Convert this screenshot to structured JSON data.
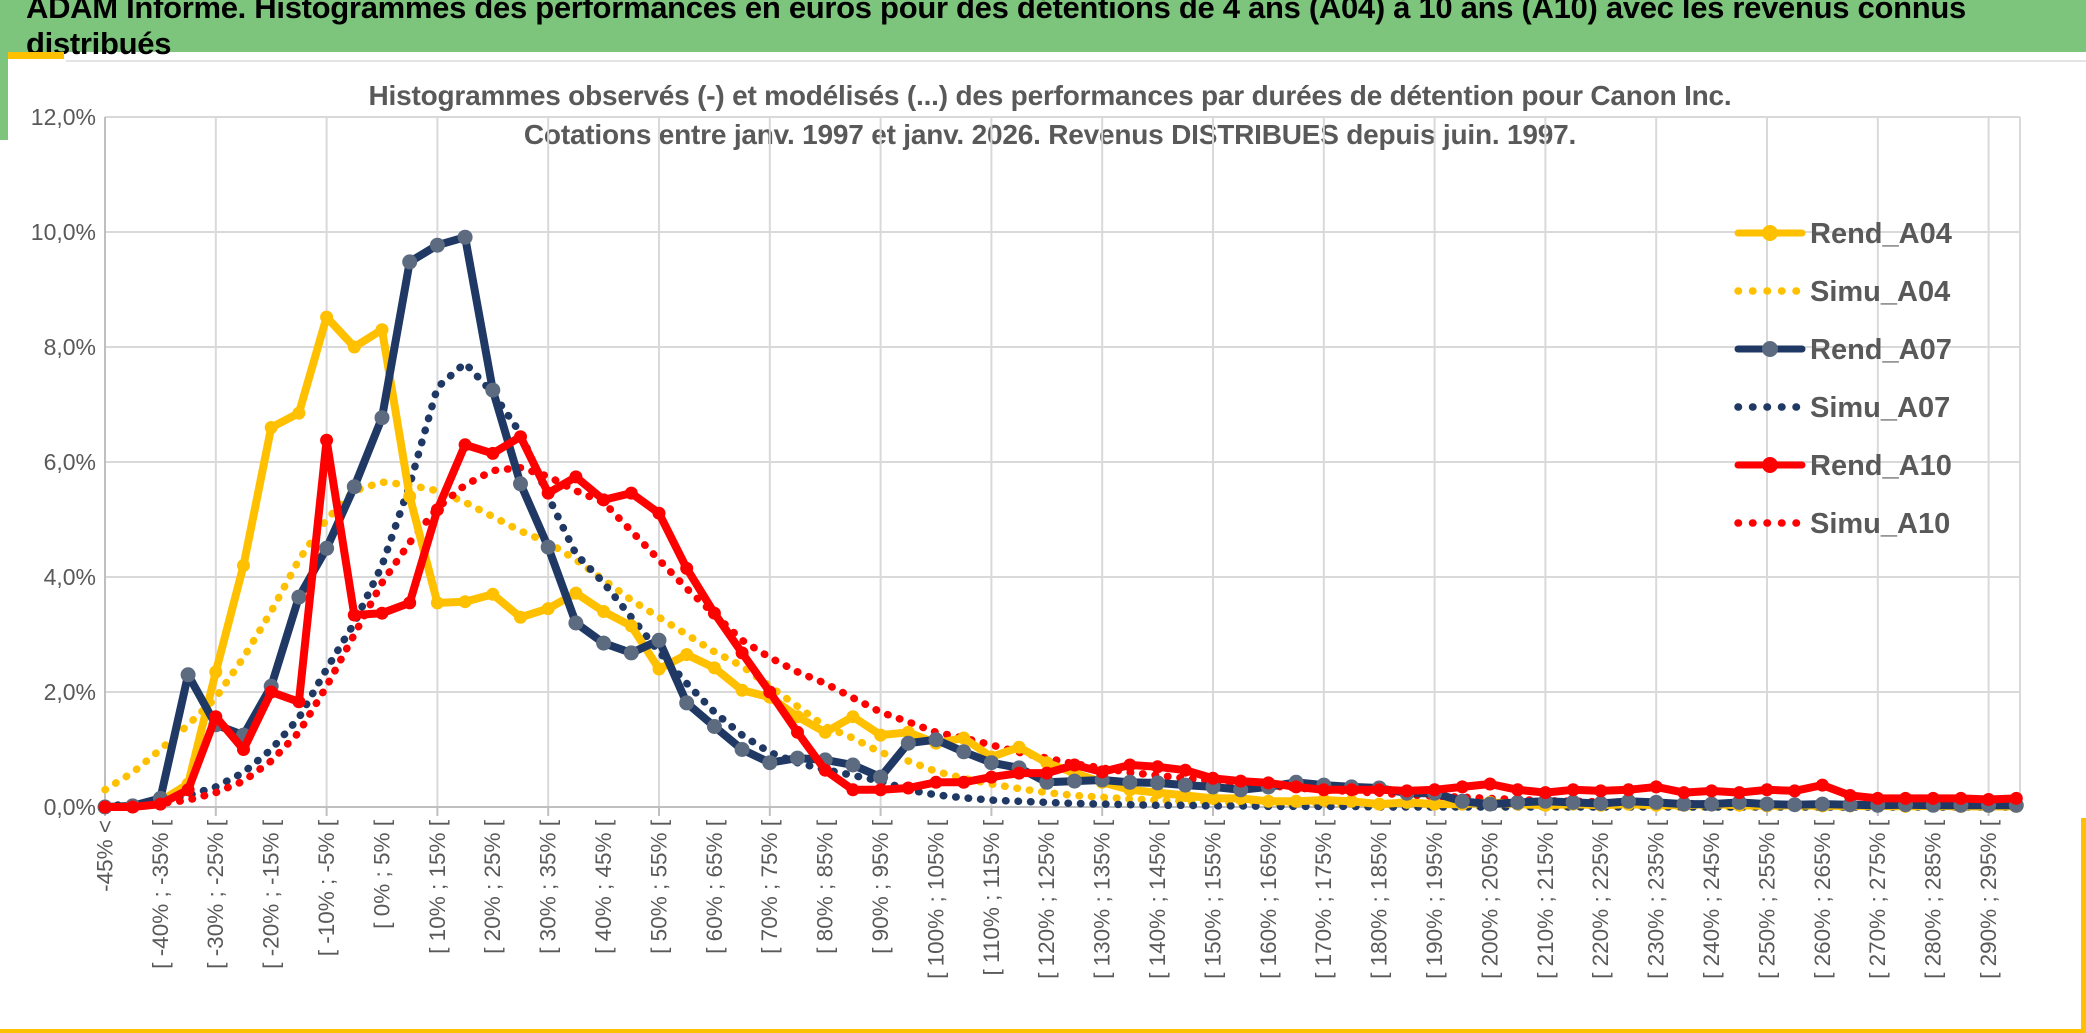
{
  "header": {
    "title": "ADAM Informe. Histogrammes des performances en euros pour des détentions de 4 ans (A04) à 10 ans (A10) avec les revenus connus distribués",
    "bg_color": "#7DC57D",
    "accent_color": "#FFC000"
  },
  "chart": {
    "title_line1": "Histogrammes observés (-) et modélisés (...) des performances par durées de détention pour Canon Inc.",
    "title_line2": "Cotations entre janv. 1997 et janv. 2026. Revenus DISTRIBUES depuis juin. 1997.",
    "title_color": "#595959",
    "grid_color": "#D9D9D9",
    "axis_color": "#BFBFBF",
    "tick_text_color": "#595959"
  },
  "chart_data": {
    "type": "line",
    "title": "Histogrammes observés (-) et modélisés (...) des performances par durées de détention pour Canon Inc.",
    "subtitle": "Cotations entre janv. 1997 et janv. 2026. Revenus DISTRIBUES depuis juin. 1997.",
    "ylim": [
      0,
      12
    ],
    "y_tick_values": [
      0,
      2,
      4,
      6,
      8,
      10,
      12
    ],
    "y_tick_labels": [
      "0,0%",
      "2,0%",
      "4,0%",
      "6,0%",
      "8,0%",
      "10,0%",
      "12,0%"
    ],
    "grid": true,
    "legend_position": "right",
    "x_label_rotation": -90,
    "bin_width_pct": 5,
    "bins_start_pct": -45,
    "labels_every_other_bin": true,
    "x_tick_labels": [
      "-45% <",
      "[ -40% ; -35% [",
      "[ -30% ; -25% [",
      "[ -20% ; -15% [",
      "[ -10% ; -5% [",
      "[ 0% ; 5% [",
      "[ 10% ; 15% [",
      "[ 20% ; 25% [",
      "[ 30% ; 35% [",
      "[ 40% ; 45% [",
      "[ 50% ; 55% [",
      "[ 60% ; 65% [",
      "[ 70% ; 75% [",
      "[ 80% ; 85% [",
      "[ 90% ; 95% [",
      "[ 100% ; 105% [",
      "[ 110% ; 115% [",
      "[ 120% ; 125% [",
      "[ 130% ; 135% [",
      "[ 140% ; 145% [",
      "[ 150% ; 155% [",
      "[ 160% ; 165% [",
      "[ 170% ; 175% [",
      "[ 180% ; 185% [",
      "[ 190% ; 195% [",
      "[ 200% ; 205% [",
      "[ 210% ; 215% [",
      "[ 220% ; 225% [",
      "[ 230% ; 235% [",
      "[ 240% ; 245% [",
      "[ 250% ; 255% [",
      "[ 260% ; 265% [",
      "[ 270% ; 275% [",
      "[ 280% ; 285% [",
      "[ 290% ; 295% ["
    ],
    "series": [
      {
        "name": "Rend_A04",
        "style": "solid",
        "color": "#FFC000",
        "marker_color": "#FFC000",
        "values": [
          0.0,
          0.02,
          0.1,
          0.4,
          2.35,
          4.2,
          6.6,
          6.85,
          8.52,
          8.0,
          8.3,
          5.4,
          3.55,
          3.57,
          3.7,
          3.3,
          3.45,
          3.72,
          3.4,
          3.15,
          2.4,
          2.65,
          2.42,
          2.03,
          1.91,
          1.57,
          1.3,
          1.57,
          1.25,
          1.3,
          1.11,
          1.2,
          0.87,
          1.04,
          0.77,
          0.59,
          0.43,
          0.3,
          0.25,
          0.2,
          0.15,
          0.15,
          0.1,
          0.1,
          0.12,
          0.1,
          0.05,
          0.08,
          0.05,
          0.05,
          0.08,
          0.05,
          0.03,
          0.05,
          0.03,
          0.05,
          0.03,
          0.03,
          0.05,
          0.03,
          0.02,
          0.03,
          0.02,
          0.02,
          0.02,
          0.01,
          0.02,
          0.01,
          0.01,
          0.01
        ]
      },
      {
        "name": "Simu_A04",
        "style": "dotted",
        "color": "#FFC000",
        "values": [
          0.3,
          0.6,
          1.0,
          1.43,
          1.9,
          2.6,
          3.4,
          4.3,
          5.0,
          5.5,
          5.65,
          5.6,
          5.5,
          5.3,
          5.05,
          4.8,
          4.6,
          4.3,
          3.95,
          3.6,
          3.3,
          3.0,
          2.7,
          2.45,
          2.1,
          1.75,
          1.4,
          1.2,
          0.95,
          0.8,
          0.62,
          0.5,
          0.4,
          0.32,
          0.25,
          0.2,
          0.17,
          0.14,
          0.12,
          0.1,
          0.08,
          0.07,
          0.06,
          0.05,
          0.04,
          0.04,
          0.03,
          0.03,
          0.02,
          0.02,
          0.02,
          0.01,
          0.01,
          0.01,
          0.01,
          0.01,
          0.01,
          0.0,
          0.0,
          0.0,
          0.0,
          0.0,
          0.0,
          0.0,
          0.0,
          0.0,
          0.0,
          0.0,
          0.0,
          0.0
        ]
      },
      {
        "name": "Rend_A07",
        "style": "solid",
        "color": "#1F3864",
        "marker_color": "#5D6B80",
        "values": [
          0.0,
          0.02,
          0.15,
          2.3,
          1.43,
          1.25,
          2.1,
          3.65,
          4.5,
          5.57,
          6.77,
          9.48,
          9.77,
          9.91,
          7.25,
          5.62,
          4.52,
          3.2,
          2.85,
          2.68,
          2.9,
          1.81,
          1.4,
          1.0,
          0.77,
          0.85,
          0.82,
          0.73,
          0.52,
          1.11,
          1.17,
          0.96,
          0.77,
          0.68,
          0.43,
          0.45,
          0.47,
          0.43,
          0.42,
          0.38,
          0.35,
          0.3,
          0.35,
          0.43,
          0.38,
          0.35,
          0.33,
          0.24,
          0.24,
          0.1,
          0.05,
          0.08,
          0.1,
          0.08,
          0.06,
          0.1,
          0.08,
          0.05,
          0.05,
          0.08,
          0.05,
          0.04,
          0.05,
          0.04,
          0.03,
          0.04,
          0.03,
          0.03,
          0.03,
          0.03
        ]
      },
      {
        "name": "Simu_A07",
        "style": "dotted",
        "color": "#1F3864",
        "values": [
          0.02,
          0.05,
          0.1,
          0.2,
          0.35,
          0.6,
          1.0,
          1.55,
          2.4,
          3.2,
          4.2,
          5.6,
          7.3,
          7.72,
          7.2,
          6.5,
          5.4,
          4.4,
          3.9,
          3.3,
          2.7,
          2.15,
          1.65,
          1.25,
          0.95,
          0.77,
          0.65,
          0.55,
          0.45,
          0.3,
          0.21,
          0.16,
          0.12,
          0.1,
          0.08,
          0.06,
          0.05,
          0.04,
          0.03,
          0.03,
          0.02,
          0.02,
          0.01,
          0.01,
          0.01,
          0.01,
          0.0,
          0.0,
          0.0,
          0.0,
          0.0,
          0.0,
          0.0,
          0.0,
          0.0,
          0.0,
          0.0,
          0.0,
          0.0,
          0.0,
          0.0,
          0.0,
          0.0,
          0.0,
          0.0,
          0.0,
          0.0,
          0.0,
          0.0,
          0.0
        ]
      },
      {
        "name": "Rend_A10",
        "style": "solid",
        "color": "#FF0000",
        "marker_color": "#FF0000",
        "values": [
          0.0,
          0.0,
          0.05,
          0.3,
          1.57,
          1.0,
          2.0,
          1.83,
          6.38,
          3.34,
          3.37,
          3.55,
          5.17,
          6.3,
          6.15,
          6.44,
          5.46,
          5.74,
          5.34,
          5.46,
          5.11,
          4.15,
          3.37,
          2.68,
          2.0,
          1.3,
          0.64,
          0.3,
          0.3,
          0.33,
          0.43,
          0.43,
          0.52,
          0.59,
          0.59,
          0.73,
          0.61,
          0.73,
          0.7,
          0.64,
          0.5,
          0.45,
          0.42,
          0.35,
          0.3,
          0.3,
          0.3,
          0.28,
          0.3,
          0.35,
          0.4,
          0.3,
          0.25,
          0.3,
          0.28,
          0.3,
          0.35,
          0.25,
          0.28,
          0.25,
          0.3,
          0.28,
          0.38,
          0.2,
          0.15,
          0.15,
          0.15,
          0.15,
          0.13,
          0.15
        ]
      },
      {
        "name": "Simu_A10",
        "style": "dotted",
        "color": "#FF0000",
        "values": [
          0.0,
          0.02,
          0.06,
          0.12,
          0.25,
          0.45,
          0.8,
          1.3,
          2.1,
          3.0,
          3.9,
          4.6,
          5.2,
          5.6,
          5.85,
          5.9,
          5.75,
          5.5,
          5.3,
          4.8,
          4.3,
          3.8,
          3.35,
          2.9,
          2.6,
          2.35,
          2.15,
          1.9,
          1.65,
          1.48,
          1.3,
          1.2,
          1.08,
          0.95,
          0.85,
          0.75,
          0.68,
          0.6,
          0.55,
          0.5,
          0.45,
          0.4,
          0.37,
          0.33,
          0.3,
          0.27,
          0.24,
          0.21,
          0.19,
          0.17,
          0.15,
          0.13,
          0.11,
          0.1,
          0.09,
          0.08,
          0.07,
          0.06,
          0.05,
          0.05,
          0.04,
          0.04,
          0.03,
          0.03,
          0.02,
          0.02,
          0.02,
          0.01,
          0.01,
          0.01
        ]
      }
    ]
  }
}
